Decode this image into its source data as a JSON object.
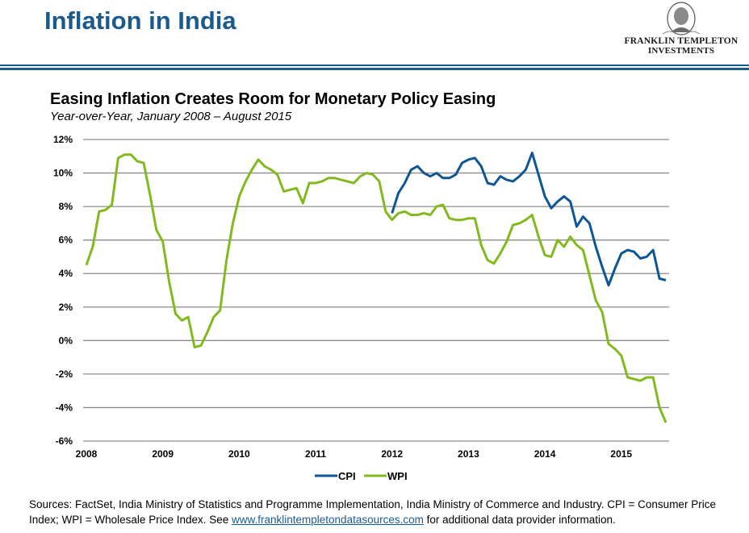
{
  "header": {
    "title": "Inflation in India",
    "logo": {
      "line1": "FRANKLIN TEMPLETON",
      "line2": "INVESTMENTS",
      "icon": "franklin-portrait-icon"
    },
    "brand_color": "#1a5a8f"
  },
  "chart_data": {
    "type": "line",
    "title": "Easing Inflation Creates Room for Monetary Policy Easing",
    "subtitle": "Year-over-Year, January 2008 – August 2015",
    "xlabel": "",
    "ylabel": "",
    "x_start": "2008-01",
    "x_end": "2015-08",
    "x_ticks": [
      "2008",
      "2009",
      "2010",
      "2011",
      "2012",
      "2013",
      "2014",
      "2015"
    ],
    "y_ticks": [
      "12%",
      "10%",
      "8%",
      "6%",
      "4%",
      "2%",
      "0%",
      "-2%",
      "-4%",
      "-6%"
    ],
    "y_tick_values": [
      12,
      10,
      8,
      6,
      4,
      2,
      0,
      -2,
      -4,
      -6
    ],
    "ylim": [
      -6,
      12
    ],
    "grid": true,
    "legend_position": "bottom-center",
    "series": [
      {
        "name": "CPI",
        "color": "#0f5596",
        "start": "2012-01",
        "values": [
          7.6,
          8.8,
          9.4,
          10.2,
          10.4,
          10.0,
          9.8,
          10.0,
          9.7,
          9.7,
          9.9,
          10.6,
          10.8,
          10.9,
          10.4,
          9.4,
          9.3,
          9.8,
          9.6,
          9.5,
          9.8,
          10.2,
          11.2,
          9.9,
          8.6,
          7.9,
          8.3,
          8.6,
          8.3,
          6.8,
          7.4,
          7.0,
          5.6,
          4.4,
          3.3,
          4.3,
          5.2,
          5.4,
          5.3,
          4.9,
          5.0,
          5.4,
          3.7,
          3.6
        ]
      },
      {
        "name": "WPI",
        "color": "#82b91e",
        "start": "2008-01",
        "values": [
          4.5,
          5.6,
          7.7,
          7.8,
          8.1,
          10.9,
          11.1,
          11.1,
          10.7,
          10.6,
          8.7,
          6.6,
          5.9,
          3.5,
          1.6,
          1.2,
          1.4,
          -0.4,
          -0.3,
          0.5,
          1.4,
          1.8,
          4.8,
          7.0,
          8.6,
          9.5,
          10.2,
          10.8,
          10.4,
          10.2,
          9.9,
          8.9,
          9.0,
          9.1,
          8.2,
          9.4,
          9.4,
          9.5,
          9.7,
          9.7,
          9.6,
          9.5,
          9.4,
          9.8,
          10.0,
          9.9,
          9.5,
          7.7,
          7.2,
          7.6,
          7.7,
          7.5,
          7.5,
          7.6,
          7.5,
          8.0,
          8.1,
          7.3,
          7.2,
          7.2,
          7.3,
          7.3,
          5.7,
          4.8,
          4.6,
          5.2,
          5.9,
          6.9,
          7.0,
          7.2,
          7.5,
          6.2,
          5.1,
          5.0,
          6.0,
          5.6,
          6.2,
          5.7,
          5.4,
          3.9,
          2.4,
          1.7,
          -0.2,
          -0.5,
          -0.9,
          -2.2,
          -2.3,
          -2.4,
          -2.2,
          -2.2,
          -4.0,
          -4.9
        ]
      }
    ]
  },
  "footnote": {
    "text_before": "Sources: FactSet, India Ministry of Statistics and Programme Implementation, India Ministry of Commerce and Industry. CPI = Consumer Price Index; WPI = Wholesale Price Index.  See ",
    "link_text": "www.franklintempletondatasources.com",
    "text_after": " for additional data provider information."
  }
}
